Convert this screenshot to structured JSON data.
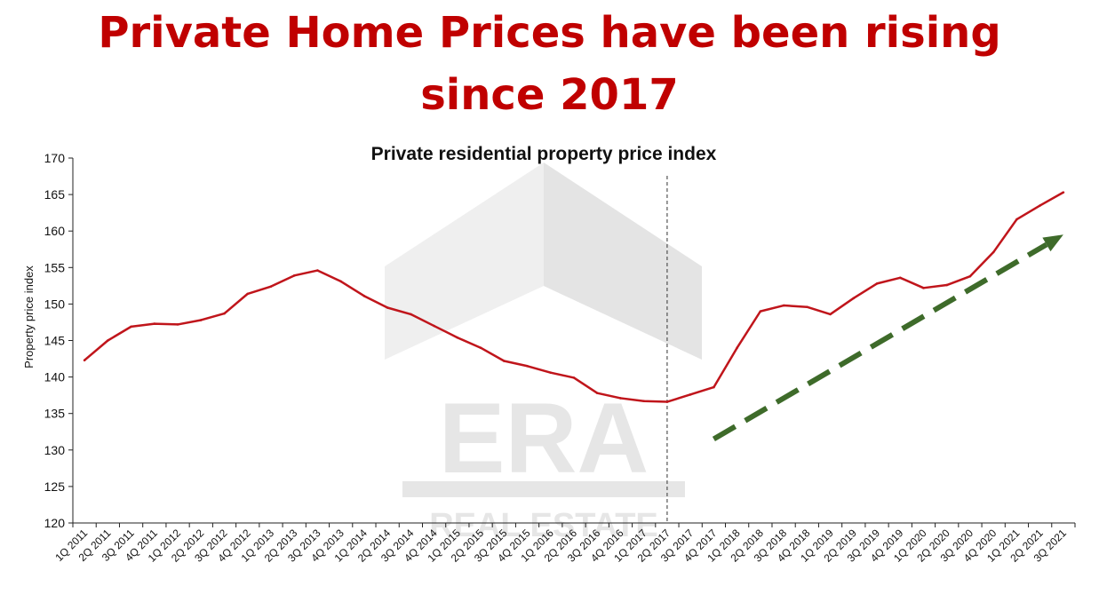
{
  "headline": {
    "line1": "Private Home Prices have been rising",
    "line2": "since 2017"
  },
  "watermark": {
    "logo": "ERA",
    "tagline": "REAL ESTATE"
  },
  "colors": {
    "headline": "#c00000",
    "series_line": "#c0151b",
    "trend_arrow": "#3e6b2a"
  },
  "chart_data": {
    "type": "line",
    "title": "Private residential property price index",
    "ylabel": "Property price index",
    "xlabel": "",
    "ylim": [
      120,
      170
    ],
    "yticks": [
      120,
      125,
      130,
      135,
      140,
      145,
      150,
      155,
      160,
      165,
      170
    ],
    "grid": false,
    "categories": [
      "1Q 2011",
      "2Q 2011",
      "3Q 2011",
      "4Q 2011",
      "1Q 2012",
      "2Q 2012",
      "3Q 2012",
      "4Q 2012",
      "1Q 2013",
      "2Q 2013",
      "3Q 2013",
      "4Q 2013",
      "1Q 2014",
      "2Q 2014",
      "3Q 2014",
      "4Q 2014",
      "1Q 2015",
      "2Q 2015",
      "3Q 2015",
      "4Q 2015",
      "1Q 2016",
      "2Q 2016",
      "3Q 2016",
      "4Q 2016",
      "1Q 2017",
      "2Q 2017",
      "3Q 2017",
      "4Q 2017",
      "1Q 2018",
      "2Q 2018",
      "3Q 2018",
      "4Q 2018",
      "1Q 2019",
      "2Q 2019",
      "3Q 2019",
      "4Q 2019",
      "1Q 2020",
      "2Q 2020",
      "3Q 2020",
      "4Q 2020",
      "1Q 2021",
      "2Q 2021",
      "3Q 2021"
    ],
    "series": [
      {
        "values": [
          142.3,
          145.0,
          146.9,
          147.3,
          147.2,
          147.8,
          148.7,
          151.4,
          152.4,
          153.9,
          154.6,
          153.1,
          151.1,
          149.5,
          148.6,
          147.0,
          145.4,
          144.0,
          142.2,
          141.5,
          140.6,
          139.9,
          137.8,
          137.1,
          136.7,
          136.6,
          137.6,
          138.6,
          144.0,
          149.0,
          149.8,
          149.6,
          148.6,
          150.8,
          152.8,
          153.6,
          152.2,
          152.6,
          153.8,
          157.1,
          161.6,
          163.5,
          165.3
        ]
      }
    ],
    "annotations": {
      "vertical_marker_at": "2Q 2017",
      "trend_arrow": {
        "from_category": "4Q 2017",
        "from_value": 131.5,
        "to_category": "3Q 2021",
        "to_value": 159.5
      }
    }
  }
}
